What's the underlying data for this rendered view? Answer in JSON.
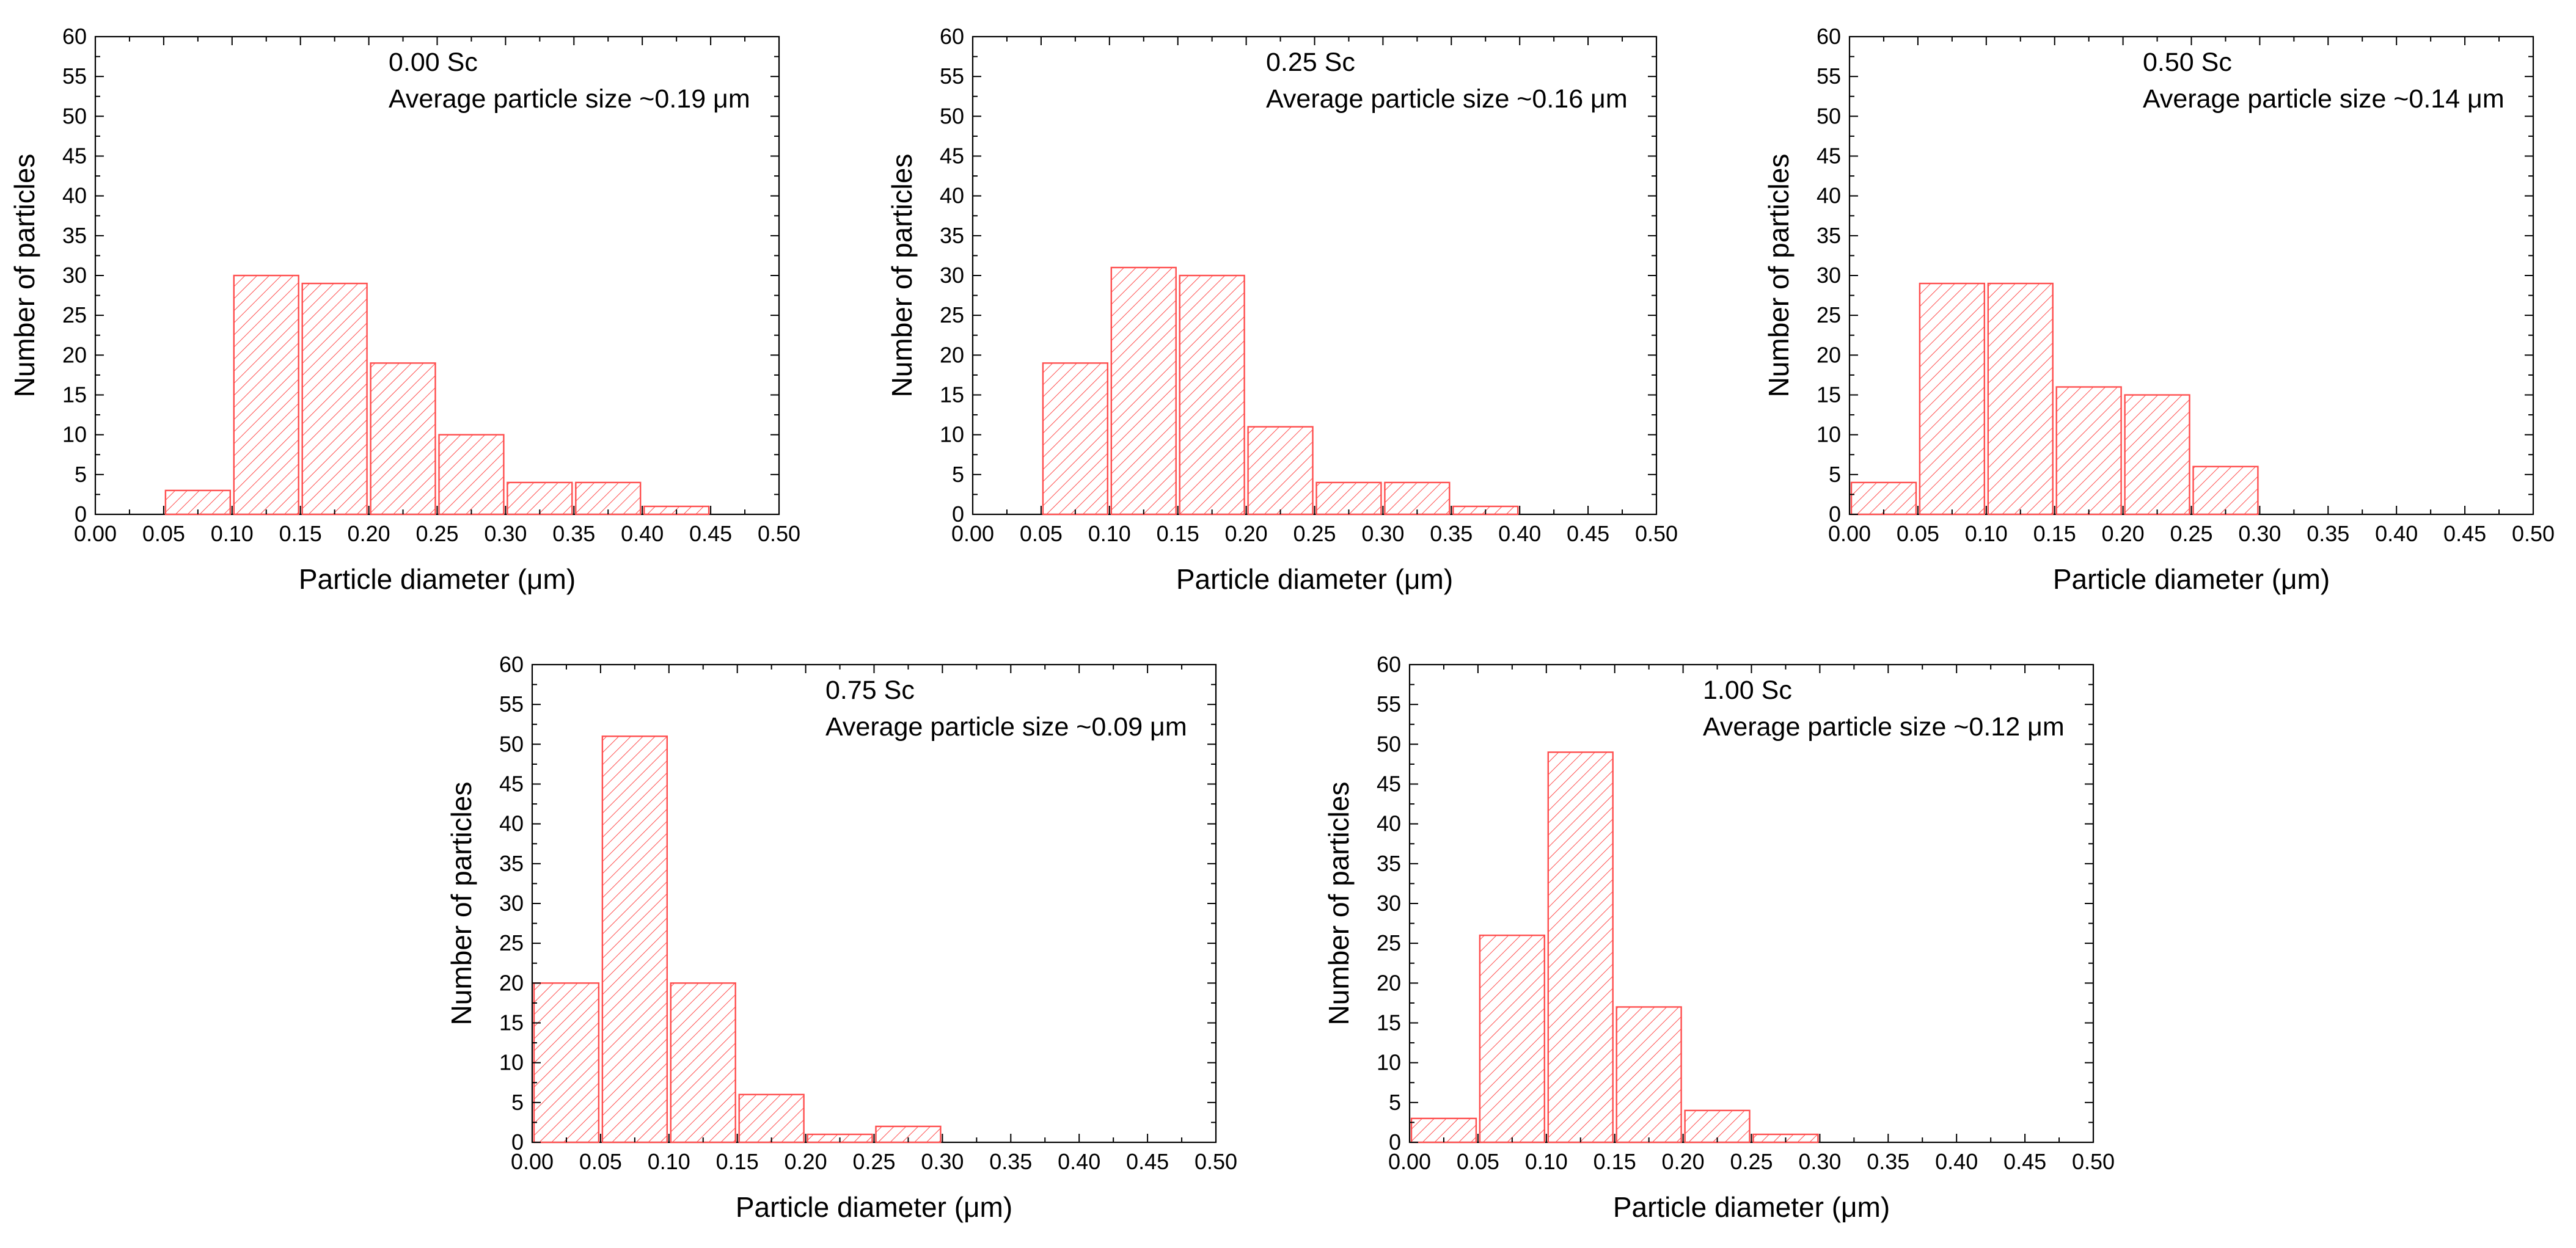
{
  "colors": {
    "bar_stroke": "#ff4d4d",
    "hatch": "#ff4d4d",
    "axis": "#000000",
    "background": "#ffffff"
  },
  "chart_data": [
    {
      "type": "bar",
      "title": "",
      "annotation_line1": "0.00 Sc",
      "annotation_line2": "Average particle size ~0.19 μm",
      "xlabel": "Particle diameter (μm)",
      "ylabel": "Number of particles",
      "xlim": [
        0,
        0.5
      ],
      "ylim": [
        0,
        60
      ],
      "xticks": [
        "0.00",
        "0.05",
        "0.10",
        "0.15",
        "0.20",
        "0.25",
        "0.30",
        "0.35",
        "0.40",
        "0.45",
        "0.50"
      ],
      "yticks": [
        "0",
        "5",
        "10",
        "15",
        "20",
        "25",
        "30",
        "35",
        "40",
        "45",
        "50",
        "55",
        "60"
      ],
      "bin_width": 0.05,
      "bin_starts": [
        0.05,
        0.1,
        0.15,
        0.2,
        0.25,
        0.3,
        0.35,
        0.4
      ],
      "values": [
        3,
        30,
        29,
        19,
        10,
        4,
        4,
        1
      ],
      "pattern": "diagonal-hatch"
    },
    {
      "type": "bar",
      "title": "",
      "annotation_line1": "0.25 Sc",
      "annotation_line2": "Average particle size ~0.16 μm",
      "xlabel": "Particle diameter (μm)",
      "ylabel": "Number of particles",
      "xlim": [
        0,
        0.5
      ],
      "ylim": [
        0,
        60
      ],
      "xticks": [
        "0.00",
        "0.05",
        "0.10",
        "0.15",
        "0.20",
        "0.25",
        "0.30",
        "0.35",
        "0.40",
        "0.45",
        "0.50"
      ],
      "yticks": [
        "0",
        "5",
        "10",
        "15",
        "20",
        "25",
        "30",
        "35",
        "40",
        "45",
        "50",
        "55",
        "60"
      ],
      "bin_width": 0.05,
      "bin_starts": [
        0.05,
        0.1,
        0.15,
        0.2,
        0.25,
        0.3,
        0.35
      ],
      "values": [
        19,
        31,
        30,
        11,
        4,
        4,
        1
      ],
      "pattern": "diagonal-hatch"
    },
    {
      "type": "bar",
      "title": "",
      "annotation_line1": "0.50 Sc",
      "annotation_line2": "Average particle size ~0.14 μm",
      "xlabel": "Particle diameter (μm)",
      "ylabel": "Number of particles",
      "xlim": [
        0,
        0.5
      ],
      "ylim": [
        0,
        60
      ],
      "xticks": [
        "0.00",
        "0.05",
        "0.10",
        "0.15",
        "0.20",
        "0.25",
        "0.30",
        "0.35",
        "0.40",
        "0.45",
        "0.50"
      ],
      "yticks": [
        "0",
        "5",
        "10",
        "15",
        "20",
        "25",
        "30",
        "35",
        "40",
        "45",
        "50",
        "55",
        "60"
      ],
      "bin_width": 0.05,
      "bin_starts": [
        0.0,
        0.05,
        0.1,
        0.15,
        0.2,
        0.25
      ],
      "values": [
        4,
        29,
        29,
        16,
        15,
        6
      ],
      "pattern": "diagonal-hatch"
    },
    {
      "type": "bar",
      "title": "",
      "annotation_line1": "0.75 Sc",
      "annotation_line2": "Average particle size ~0.09 μm",
      "xlabel": "Particle diameter (μm)",
      "ylabel": "Number of particles",
      "xlim": [
        0,
        0.5
      ],
      "ylim": [
        0,
        60
      ],
      "xticks": [
        "0.00",
        "0.05",
        "0.10",
        "0.15",
        "0.20",
        "0.25",
        "0.30",
        "0.35",
        "0.40",
        "0.45",
        "0.50"
      ],
      "yticks": [
        "0",
        "5",
        "10",
        "15",
        "20",
        "25",
        "30",
        "35",
        "40",
        "45",
        "50",
        "55",
        "60"
      ],
      "bin_width": 0.05,
      "bin_starts": [
        0.0,
        0.05,
        0.1,
        0.15,
        0.2,
        0.25
      ],
      "values": [
        20,
        51,
        20,
        6,
        1,
        2
      ],
      "pattern": "diagonal-hatch"
    },
    {
      "type": "bar",
      "title": "",
      "annotation_line1": "1.00 Sc",
      "annotation_line2": "Average particle size ~0.12 μm",
      "xlabel": "Particle diameter (μm)",
      "ylabel": "Number of particles",
      "xlim": [
        0,
        0.5
      ],
      "ylim": [
        0,
        60
      ],
      "xticks": [
        "0.00",
        "0.05",
        "0.10",
        "0.15",
        "0.20",
        "0.25",
        "0.30",
        "0.35",
        "0.40",
        "0.45",
        "0.50"
      ],
      "yticks": [
        "0",
        "5",
        "10",
        "15",
        "20",
        "25",
        "30",
        "35",
        "40",
        "45",
        "50",
        "55",
        "60"
      ],
      "bin_width": 0.05,
      "bin_starts": [
        0.0,
        0.05,
        0.1,
        0.15,
        0.2,
        0.25
      ],
      "values": [
        3,
        26,
        49,
        17,
        4,
        1
      ],
      "pattern": "diagonal-hatch"
    }
  ]
}
